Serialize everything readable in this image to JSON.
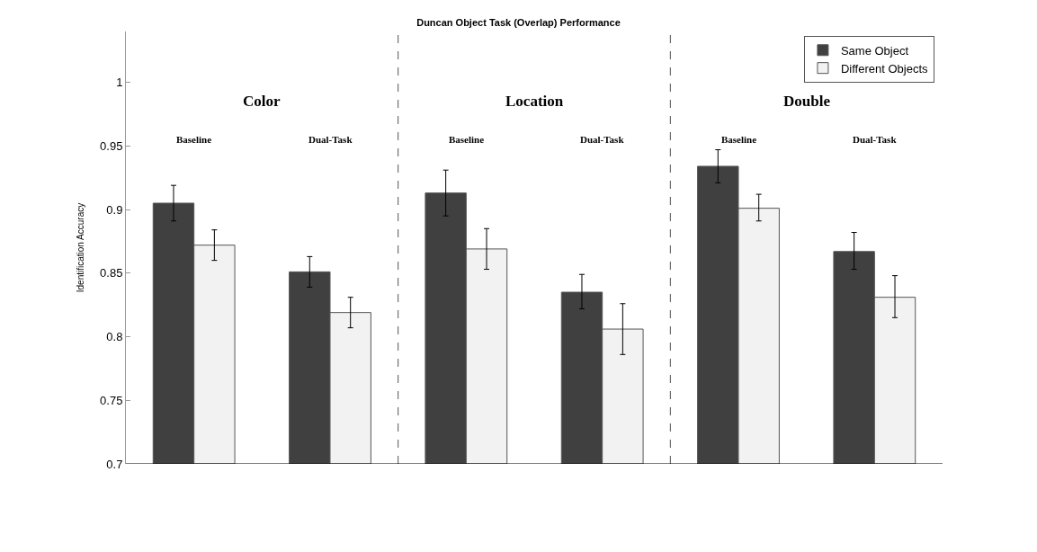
{
  "chart_data": {
    "type": "bar",
    "title": "Duncan Object Task (Overlap) Performance",
    "ylabel": "Identification Accuracy",
    "categories": [
      null,
      null,
      null,
      null,
      null,
      null
    ],
    "series": [
      {
        "name": "Same Object",
        "color": "#404040",
        "values": [
          0.905,
          0.851,
          0.913,
          0.835,
          0.934,
          0.867
        ],
        "errors": [
          [
            0.891,
            0.919
          ],
          [
            0.839,
            0.863
          ],
          [
            0.895,
            0.931
          ],
          [
            0.822,
            0.849
          ],
          [
            0.921,
            0.947
          ],
          [
            0.853,
            0.882
          ]
        ]
      },
      {
        "name": "Different Objects",
        "color": "#f2f2f2",
        "values": [
          0.872,
          0.819,
          0.869,
          0.806,
          0.901,
          0.831
        ],
        "errors": [
          [
            0.86,
            0.884
          ],
          [
            0.807,
            0.831
          ],
          [
            0.853,
            0.885
          ],
          [
            0.786,
            0.826
          ],
          [
            0.891,
            0.912
          ],
          [
            0.815,
            0.848
          ]
        ]
      }
    ],
    "ylim": [
      0.7,
      1.04
    ],
    "yticks": [
      0.7,
      0.75,
      0.8,
      0.85,
      0.9,
      0.95,
      1
    ],
    "annotations": [
      "Color",
      "Location",
      "Double",
      "Baseline",
      "Dual-Task",
      "Baseline",
      "Dual-Task",
      "Baseline",
      "Dual-Task"
    ],
    "legend": "top right",
    "tick_labels": "y"
  }
}
